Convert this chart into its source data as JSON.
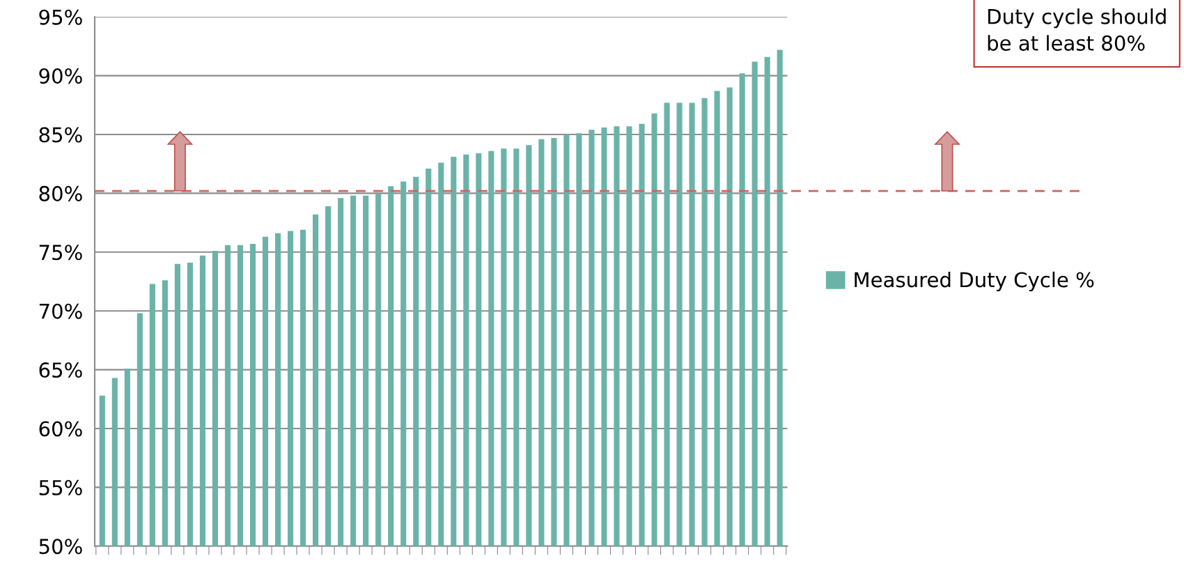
{
  "chart_data": {
    "type": "bar",
    "categories": [
      null,
      null,
      null,
      null,
      null,
      null,
      null,
      null,
      null,
      null,
      null,
      null,
      null,
      null,
      null,
      null,
      null,
      null,
      null,
      null,
      null,
      null,
      null,
      null,
      null,
      null,
      null,
      null,
      null,
      null,
      null,
      null,
      null,
      null,
      null,
      null,
      null,
      null,
      null,
      null,
      null,
      null,
      null,
      null,
      null,
      null,
      null,
      null,
      null,
      null,
      null,
      null,
      null,
      null,
      null
    ],
    "series": [
      {
        "name": "Measured Duty Cycle %",
        "color": "#6bb3a8",
        "values": [
          62.8,
          64.3,
          65.1,
          69.8,
          72.3,
          72.6,
          74.0,
          74.1,
          74.7,
          75.1,
          75.6,
          75.6,
          75.7,
          76.3,
          76.6,
          76.8,
          76.9,
          78.2,
          78.9,
          79.6,
          79.8,
          79.8,
          80.0,
          80.6,
          81.0,
          81.4,
          82.1,
          82.6,
          83.1,
          83.3,
          83.4,
          83.6,
          83.8,
          83.8,
          84.1,
          84.6,
          84.7,
          85.0,
          85.1,
          85.4,
          85.6,
          85.7,
          85.7,
          85.9,
          86.8,
          87.7,
          87.7,
          87.7,
          88.1,
          88.7,
          89.0,
          90.2,
          91.2,
          91.6,
          92.2
        ]
      }
    ],
    "ylim": [
      50,
      95
    ],
    "yticks": [
      {
        "value": 50,
        "label": "50%"
      },
      {
        "value": 55,
        "label": "55%"
      },
      {
        "value": 60,
        "label": "60%"
      },
      {
        "value": 65,
        "label": "65%"
      },
      {
        "value": 70,
        "label": "70%"
      },
      {
        "value": 75,
        "label": "75%"
      },
      {
        "value": 80,
        "label": "80%"
      },
      {
        "value": 85,
        "label": "85%"
      },
      {
        "value": 90,
        "label": "90%"
      },
      {
        "value": 95,
        "label": "95%"
      }
    ],
    "grid": "y",
    "legend": "right",
    "ref_lines": [
      {
        "axis": "y",
        "value": 80.2,
        "color": "#d0635f",
        "line_style": "dashed"
      }
    ],
    "annotations": [
      "Duty cycle should be at least 80%"
    ]
  }
}
